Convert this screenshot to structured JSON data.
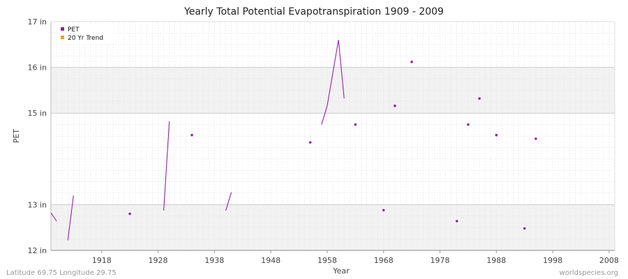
{
  "chart_data": {
    "type": "line",
    "title": "Yearly Total Potential Evapotranspiration 1909 - 2009",
    "xlabel": "Year",
    "ylabel": "PET",
    "xlim": [
      1909,
      2009
    ],
    "ylim": [
      12,
      17
    ],
    "x_ticks": [
      "1918",
      "1928",
      "1938",
      "1948",
      "1958",
      "1968",
      "1978",
      "1988",
      "1998",
      "2008"
    ],
    "y_ticks": [
      "12 in",
      "13 in",
      "15 in",
      "16 in",
      "17 in"
    ],
    "y_tick_values": [
      12,
      13,
      15,
      16,
      17
    ],
    "grid": true,
    "legend_position": "top-left",
    "series": [
      {
        "name": "PET",
        "color": "#9a1bb0",
        "points": [
          [
            1909,
            12.82
          ],
          [
            1910,
            12.64
          ],
          [
            null,
            null
          ],
          [
            1912,
            12.22
          ],
          [
            1913,
            13.2
          ],
          [
            null,
            null
          ],
          [
            1923,
            12.8
          ],
          [
            null,
            null
          ],
          [
            1929,
            12.87
          ],
          [
            1930,
            14.82
          ],
          [
            null,
            null
          ],
          [
            1934,
            14.52
          ],
          [
            null,
            null
          ],
          [
            1940,
            12.87
          ],
          [
            1941,
            13.27
          ],
          [
            null,
            null
          ],
          [
            1955,
            14.36
          ],
          [
            null,
            null
          ],
          [
            1957,
            14.75
          ],
          [
            1958,
            15.16
          ],
          [
            1960,
            16.6
          ],
          [
            1961,
            15.32
          ],
          [
            null,
            null
          ],
          [
            1963,
            14.75
          ],
          [
            null,
            null
          ],
          [
            1968,
            12.88
          ],
          [
            null,
            null
          ],
          [
            1970,
            15.16
          ],
          [
            null,
            null
          ],
          [
            1973,
            16.12
          ],
          [
            null,
            null
          ],
          [
            1981,
            12.64
          ],
          [
            null,
            null
          ],
          [
            1983,
            14.75
          ],
          [
            null,
            null
          ],
          [
            1985,
            15.32
          ],
          [
            null,
            null
          ],
          [
            1988,
            14.52
          ],
          [
            null,
            null
          ],
          [
            1993,
            12.48
          ],
          [
            null,
            null
          ],
          [
            1995,
            14.44
          ]
        ]
      },
      {
        "name": "20 Yr Trend",
        "color": "#f0a020",
        "points": []
      }
    ]
  },
  "footer": {
    "left": "Latitude 69.75 Longitude 29.75",
    "right": "worldspecies.org"
  }
}
